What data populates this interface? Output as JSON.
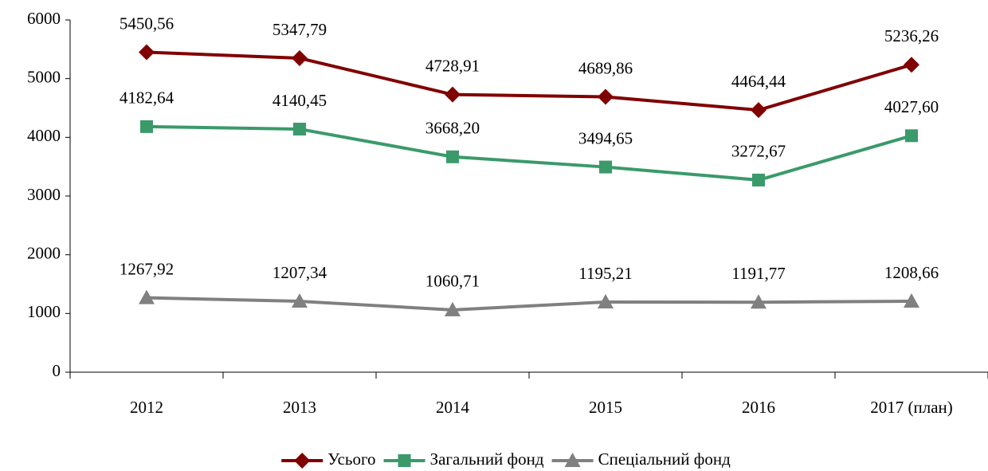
{
  "chart_data": {
    "type": "line",
    "categories": [
      "2012",
      "2013",
      "2014",
      "2015",
      "2016",
      "2017 (план)"
    ],
    "series": [
      {
        "name": "Усього",
        "color": "#800000",
        "marker": "diamond",
        "values": [
          5450.56,
          5347.79,
          4728.91,
          4689.86,
          4464.44,
          5236.26
        ],
        "value_labels": [
          "5450,56",
          "5347,79",
          "4728,91",
          "4689,86",
          "4464,44",
          "5236,26"
        ]
      },
      {
        "name": "Загальний фонд",
        "color": "#3a9a6a",
        "marker": "square",
        "values": [
          4182.64,
          4140.45,
          3668.2,
          3494.65,
          3272.67,
          4027.6
        ],
        "value_labels": [
          "4182,64",
          "4140,45",
          "3668,20",
          "3494,65",
          "3272,67",
          "4027,60"
        ]
      },
      {
        "name": "Спеціальний фонд",
        "color": "#808080",
        "marker": "triangle",
        "values": [
          1267.92,
          1207.34,
          1060.71,
          1195.21,
          1191.77,
          1208.66
        ],
        "value_labels": [
          "1267,92",
          "1207,34",
          "1060,71",
          "1195,21",
          "1191,77",
          "1208,66"
        ]
      }
    ],
    "ylim": [
      0,
      6000
    ],
    "yticks": [
      0,
      1000,
      2000,
      3000,
      4000,
      5000,
      6000
    ],
    "grid": false,
    "legend": "bottom"
  }
}
